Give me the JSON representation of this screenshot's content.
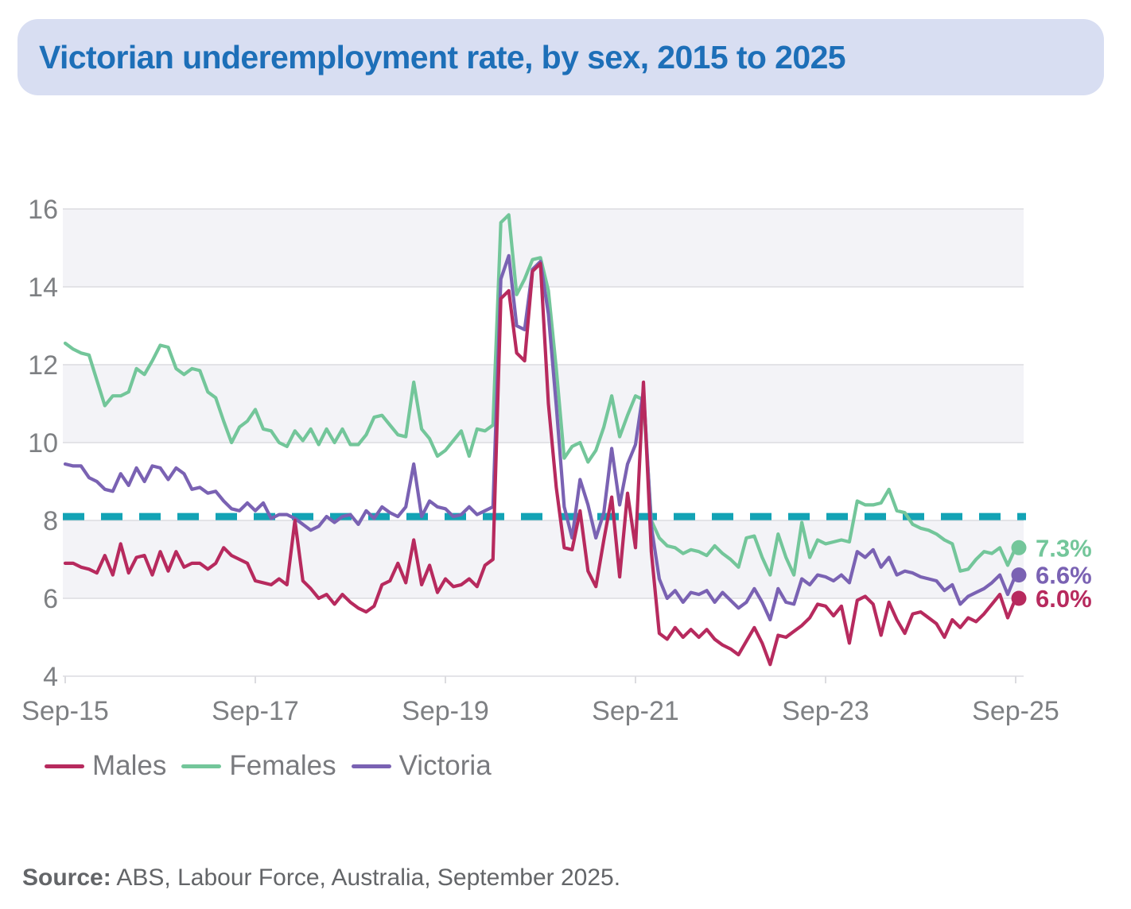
{
  "title": "Victorian underemployment rate, by sex, 2015 to 2025",
  "source": {
    "label": "Source:",
    "text": " ABS, Labour Force, Australia, September 2025."
  },
  "legend": {
    "items": [
      "Males",
      "Females",
      "Victoria"
    ]
  },
  "colors": {
    "males": "#b72a5e",
    "females": "#73c69a",
    "victoria": "#7a62b3",
    "reference_line": "#13a3b5",
    "title_text": "#1d6fb8",
    "banner_bg": "#d8def2",
    "axis_text": "#7e8083",
    "gridline": "#dcdce0",
    "band": "#f3f3f7"
  },
  "chart_data": {
    "type": "line",
    "title": "Victorian underemployment rate, by sex, 2015 to 2025",
    "unit": "%",
    "x_unit": "month",
    "x_start": "Sep-2015",
    "x_end": "Sep-2025",
    "x_tick_labels": [
      "Sep-15",
      "Sep-17",
      "Sep-19",
      "Sep-21",
      "Sep-23",
      "Sep-25"
    ],
    "x_tick_months": [
      0,
      24,
      48,
      72,
      96,
      120
    ],
    "y_ticks": [
      4,
      6,
      8,
      10,
      12,
      14,
      16
    ],
    "ylim": [
      4,
      16
    ],
    "grid": "horizontal",
    "legend_position": "bottom",
    "reference_line": {
      "value": 8.1,
      "style": "dashed"
    },
    "series": [
      {
        "name": "Males",
        "color": "#b72a5e",
        "end_label": "6.0%",
        "end_value": 6.0,
        "values": [
          6.9,
          6.9,
          6.8,
          6.75,
          6.65,
          7.1,
          6.6,
          7.4,
          6.65,
          7.05,
          7.1,
          6.6,
          7.2,
          6.7,
          7.2,
          6.8,
          6.9,
          6.9,
          6.75,
          6.9,
          7.3,
          7.1,
          7.0,
          6.9,
          6.45,
          6.4,
          6.35,
          6.5,
          6.35,
          8.0,
          6.45,
          6.25,
          6.0,
          6.1,
          5.85,
          6.1,
          5.9,
          5.75,
          5.65,
          5.8,
          6.35,
          6.45,
          6.9,
          6.4,
          7.5,
          6.35,
          6.85,
          6.15,
          6.5,
          6.3,
          6.35,
          6.5,
          6.3,
          6.85,
          7.0,
          13.7,
          13.9,
          12.3,
          12.1,
          14.4,
          14.6,
          11.0,
          8.85,
          7.3,
          7.25,
          8.25,
          6.7,
          6.3,
          7.5,
          8.6,
          6.55,
          8.7,
          7.3,
          11.55,
          7.2,
          5.1,
          4.95,
          5.25,
          5.0,
          5.2,
          5.0,
          5.2,
          4.95,
          4.8,
          4.7,
          4.55,
          4.9,
          5.25,
          4.85,
          4.3,
          5.05,
          5.0,
          5.15,
          5.3,
          5.5,
          5.85,
          5.8,
          5.55,
          5.8,
          4.85,
          5.95,
          6.05,
          5.85,
          5.05,
          5.9,
          5.45,
          5.1,
          5.6,
          5.65,
          5.5,
          5.35,
          5.0,
          5.45,
          5.25,
          5.5,
          5.4,
          5.6,
          5.85,
          6.1,
          5.5,
          6.0
        ]
      },
      {
        "name": "Females",
        "color": "#73c69a",
        "end_label": "7.3%",
        "end_value": 7.3,
        "values": [
          12.55,
          12.4,
          12.3,
          12.25,
          11.6,
          10.95,
          11.2,
          11.2,
          11.3,
          11.9,
          11.75,
          12.1,
          12.5,
          12.45,
          11.9,
          11.75,
          11.9,
          11.85,
          11.3,
          11.15,
          10.55,
          10.0,
          10.4,
          10.55,
          10.85,
          10.35,
          10.3,
          10.0,
          9.9,
          10.3,
          10.05,
          10.35,
          9.95,
          10.35,
          10.0,
          10.35,
          9.95,
          9.95,
          10.2,
          10.65,
          10.7,
          10.45,
          10.2,
          10.15,
          11.55,
          10.35,
          10.1,
          9.65,
          9.8,
          10.05,
          10.3,
          9.65,
          10.35,
          10.3,
          10.45,
          15.65,
          15.85,
          13.8,
          14.2,
          14.7,
          14.75,
          13.9,
          11.9,
          9.6,
          9.9,
          10.0,
          9.5,
          9.8,
          10.4,
          11.2,
          10.15,
          10.7,
          11.2,
          11.1,
          8.0,
          7.55,
          7.35,
          7.3,
          7.15,
          7.25,
          7.2,
          7.1,
          7.35,
          7.15,
          7.0,
          6.8,
          7.55,
          7.6,
          7.05,
          6.6,
          7.65,
          7.05,
          6.6,
          7.95,
          7.05,
          7.5,
          7.4,
          7.45,
          7.5,
          7.45,
          8.5,
          8.4,
          8.4,
          8.45,
          8.8,
          8.25,
          8.2,
          7.9,
          7.8,
          7.75,
          7.65,
          7.5,
          7.4,
          6.7,
          6.75,
          7.0,
          7.2,
          7.15,
          7.3,
          6.85,
          7.3
        ]
      },
      {
        "name": "Victoria",
        "color": "#7a62b3",
        "end_label": "6.6%",
        "end_value": 6.6,
        "values": [
          9.45,
          9.4,
          9.4,
          9.1,
          9.0,
          8.8,
          8.75,
          9.2,
          8.9,
          9.35,
          9.0,
          9.4,
          9.35,
          9.05,
          9.35,
          9.2,
          8.8,
          8.85,
          8.7,
          8.75,
          8.5,
          8.3,
          8.25,
          8.45,
          8.25,
          8.45,
          8.05,
          8.15,
          8.15,
          8.05,
          7.9,
          7.75,
          7.85,
          8.1,
          7.95,
          8.1,
          8.15,
          7.9,
          8.25,
          8.05,
          8.35,
          8.2,
          8.1,
          8.35,
          9.45,
          8.1,
          8.5,
          8.35,
          8.3,
          8.1,
          8.15,
          8.35,
          8.15,
          8.25,
          8.35,
          14.2,
          14.8,
          13.0,
          12.9,
          14.45,
          14.65,
          13.3,
          10.95,
          8.35,
          7.55,
          9.05,
          8.4,
          7.55,
          8.2,
          9.85,
          8.4,
          9.45,
          9.95,
          11.35,
          7.85,
          6.5,
          6.0,
          6.2,
          5.9,
          6.15,
          6.1,
          6.2,
          5.9,
          6.15,
          5.95,
          5.75,
          5.9,
          6.25,
          5.9,
          5.45,
          6.25,
          5.9,
          5.85,
          6.5,
          6.35,
          6.6,
          6.55,
          6.45,
          6.6,
          6.4,
          7.2,
          7.05,
          7.25,
          6.8,
          7.05,
          6.6,
          6.7,
          6.65,
          6.55,
          6.5,
          6.45,
          6.2,
          6.35,
          5.85,
          6.05,
          6.15,
          6.25,
          6.4,
          6.6,
          6.1,
          6.6
        ]
      }
    ]
  }
}
